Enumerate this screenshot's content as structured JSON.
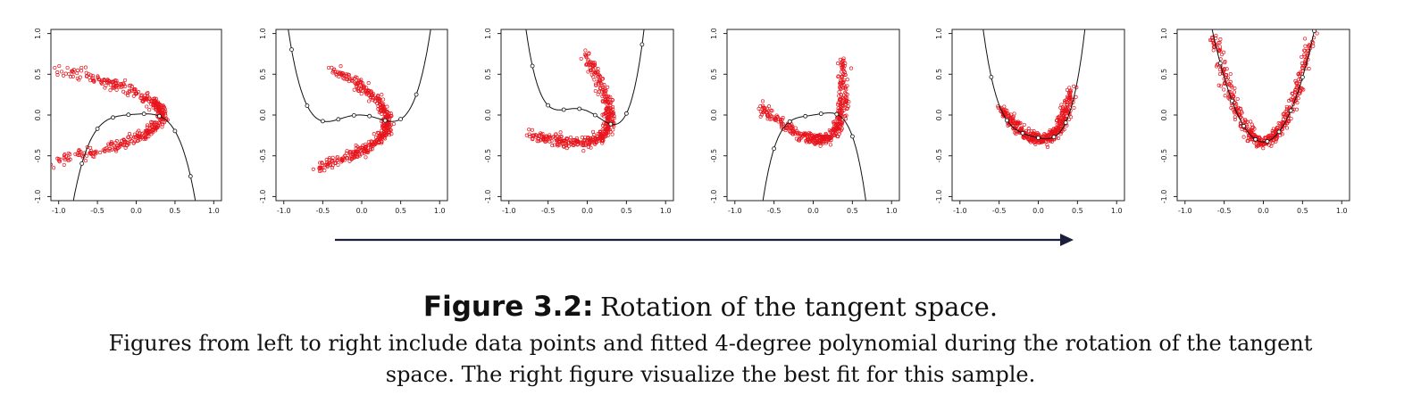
{
  "figure": {
    "label": "Figure 3.2:",
    "title": "Rotation of the tangent space.",
    "caption_line1": "Figures from left to right include data points and fitted 4-degree polynomial during the rotation of the tangent",
    "caption_line2": "space. The right figure visualize the best fit for this sample."
  },
  "colors": {
    "points": "#e8141c",
    "curve": "#111111",
    "axis": "#222222",
    "arrow": "#1b1f3b"
  },
  "chart_data": [
    {
      "type": "scatter",
      "title": "",
      "xlabel": "",
      "ylabel": "",
      "xlim": [
        -1.1,
        1.1
      ],
      "ylim": [
        -1.05,
        1.05
      ],
      "xticks": [
        "-1.0",
        "-0.5",
        "0.0",
        "0.5",
        "1.0"
      ],
      "yticks": [
        "-1.0",
        "-0.5",
        "0.0",
        "0.5",
        "1.0"
      ],
      "points_desc": "sideways parabola opening left, vertex near (0.33, 0.0), arms to (-1.1, ±0.55)",
      "fit_coeffs": [
        0.01,
        0.06,
        -0.12,
        -0.35,
        -2.6
      ],
      "fit_knots_x": [
        -1.1,
        -0.9,
        -0.7,
        -0.5,
        -0.3,
        -0.1,
        0.1,
        0.3,
        0.5,
        0.7,
        0.9
      ]
    },
    {
      "type": "scatter",
      "title": "",
      "xlabel": "",
      "ylabel": "",
      "xlim": [
        -1.1,
        1.1
      ],
      "ylim": [
        -1.05,
        1.05
      ],
      "xticks": [
        "-1.0",
        "-0.5",
        "0.0",
        "0.5",
        "1.0"
      ],
      "yticks": [
        "-1.0",
        "-0.5",
        "0.0",
        "0.5",
        "1.0"
      ],
      "points_desc": "rotated parabola, vertex near (0.3, -0.12), upper arm to (-0.85, 0.95), lower arm to (-1.0, -0.25)",
      "fit_coeffs": [
        0.0,
        -0.05,
        -0.9,
        0.3,
        2.6
      ],
      "fit_knots_x": [
        -1.1,
        -0.9,
        -0.7,
        -0.5,
        -0.3,
        -0.1,
        0.1,
        0.3,
        0.5,
        0.7,
        0.9
      ]
    },
    {
      "type": "scatter",
      "title": "",
      "xlabel": "",
      "ylabel": "",
      "xlim": [
        -1.1,
        1.1
      ],
      "ylim": [
        -1.05,
        1.05
      ],
      "xticks": [
        "-1.0",
        "-0.5",
        "0.0",
        "0.5",
        "1.0"
      ],
      "yticks": [
        "-1.0",
        "-0.5",
        "0.0",
        "0.5",
        "1.0"
      ],
      "points_desc": "rotated parabola, vertex near (0.22, -0.2), upper arm to (-0.4, 1.0), lower arm to (-1.1, 0.2)",
      "fit_coeffs": [
        0.05,
        -0.4,
        -1.3,
        1.2,
        5.5
      ],
      "fit_knots_x": [
        -1.1,
        -0.9,
        -0.7,
        -0.5,
        -0.3,
        -0.1,
        0.1,
        0.3,
        0.5,
        0.7
      ]
    },
    {
      "type": "scatter",
      "title": "",
      "xlabel": "",
      "ylabel": "",
      "xlim": [
        -1.1,
        1.1
      ],
      "ylim": [
        -1.05,
        1.05
      ],
      "xticks": [
        "-1.0",
        "-0.5",
        "0.0",
        "0.5",
        "1.0"
      ],
      "yticks": [
        "-1.0",
        "-0.5",
        "0.0",
        "0.5",
        "1.0"
      ],
      "points_desc": "rotated parabola, vertex near (0.15, -0.28), left arm to (-1.05, 0.75), right arm to (0.0, 1.0)",
      "fit_coeffs": [
        0.0,
        0.15,
        0.15,
        0.0,
        -6.0
      ],
      "fit_knots_x": [
        -1.1,
        -0.9,
        -0.7,
        -0.5,
        -0.3,
        -0.1,
        0.1,
        0.3,
        0.5
      ]
    },
    {
      "type": "scatter",
      "title": "",
      "xlabel": "",
      "ylabel": "",
      "xlim": [
        -1.1,
        1.1
      ],
      "ylim": [
        -1.05,
        1.05
      ],
      "xticks": [
        "-1.0",
        "-0.5",
        "0.0",
        "0.5",
        "1.0"
      ],
      "yticks": [
        "-1.0",
        "-0.5",
        "0.0",
        "0.5",
        "1.0"
      ],
      "points_desc": "nearly upright parabola, vertex near (0.06, -0.3), left arm to (-1.0, 1.0), right arm to (0.25, 1.0)",
      "fit_coeffs": [
        -0.28,
        -0.2,
        0.6,
        2.0,
        6.5
      ],
      "fit_knots_x": [
        -1.0,
        -0.8,
        -0.6,
        -0.4,
        -0.2,
        0.0,
        0.2,
        0.35
      ]
    },
    {
      "type": "scatter",
      "title": "",
      "xlabel": "",
      "ylabel": "",
      "xlim": [
        -1.1,
        1.1
      ],
      "ylim": [
        -1.05,
        1.05
      ],
      "xticks": [
        "-1.0",
        "-0.5",
        "0.0",
        "0.5",
        "1.0"
      ],
      "yticks": [
        "-1.0",
        "-0.5",
        "0.0",
        "0.5",
        "1.0"
      ],
      "points_desc": "upright parabola, vertex near (0.0, -0.33), arms to (-0.65, 1.0) and (0.6, 1.0)",
      "fit_coeffs": [
        -0.33,
        0.0,
        3.1,
        0.0,
        0.3
      ],
      "fit_knots_x": [
        -0.7,
        -0.55,
        -0.4,
        -0.25,
        -0.1,
        0.05,
        0.2,
        0.35,
        0.5,
        0.65
      ]
    }
  ]
}
